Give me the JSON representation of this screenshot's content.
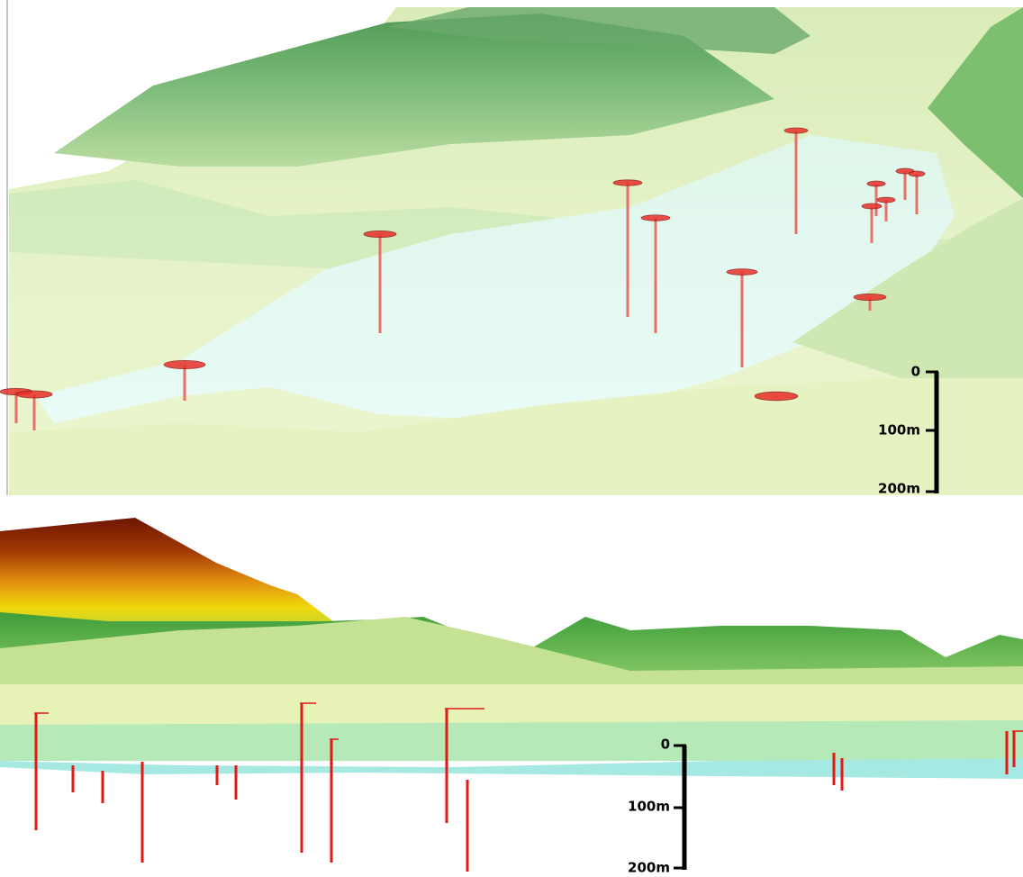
{
  "panels": [
    {
      "scale_bar": {
        "labels": [
          "0",
          "100m",
          "200m"
        ]
      }
    },
    {
      "scale_bar": {
        "labels": [
          "0",
          "100m",
          "200m"
        ]
      }
    }
  ]
}
